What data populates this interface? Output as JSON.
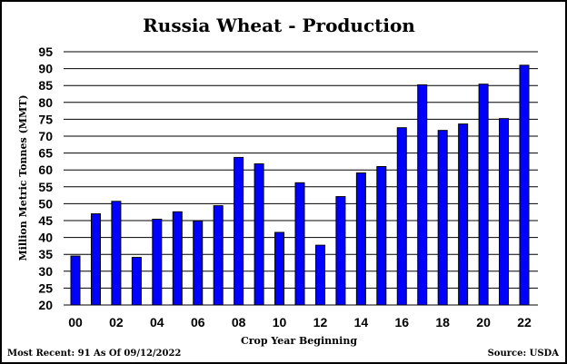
{
  "chart_data": {
    "type": "bar",
    "title": "Russia Wheat - Production",
    "xlabel": "Crop Year Beginning",
    "ylabel": "Million Metric Tonnes (MMT)",
    "ylim": [
      20,
      95
    ],
    "yticks": [
      20,
      25,
      30,
      35,
      40,
      45,
      50,
      55,
      60,
      65,
      70,
      75,
      80,
      85,
      90,
      95
    ],
    "categories": [
      "00",
      "01",
      "02",
      "03",
      "04",
      "05",
      "06",
      "07",
      "08",
      "09",
      "10",
      "11",
      "12",
      "13",
      "14",
      "15",
      "16",
      "17",
      "18",
      "19",
      "20",
      "21",
      "22"
    ],
    "xtick_labels": [
      "00",
      "02",
      "04",
      "06",
      "08",
      "10",
      "12",
      "14",
      "16",
      "18",
      "20",
      "22"
    ],
    "values": [
      34.5,
      47,
      50.7,
      34.1,
      45.4,
      47.6,
      44.9,
      49.4,
      63.7,
      61.8,
      41.5,
      56.2,
      37.7,
      52.1,
      59.1,
      61,
      72.5,
      85.2,
      71.7,
      73.6,
      85.4,
      75.2,
      91
    ],
    "grid": true,
    "bar_color": "#0000ff",
    "bar_edge_color": "#000000",
    "footer_left": "Most Recent: 91 As Of 09/12/2022",
    "footer_right": "Source: USDA"
  }
}
